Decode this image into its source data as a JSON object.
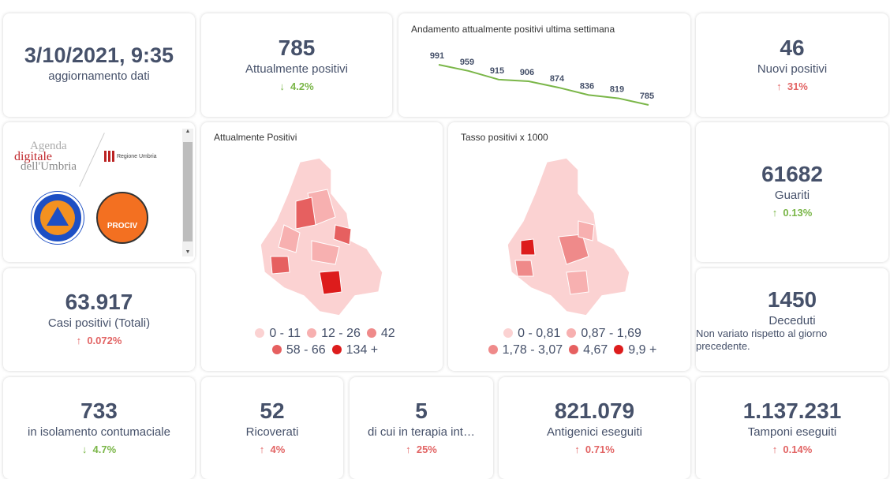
{
  "update": {
    "datetime": "3/10/2021, 9:35",
    "label": "aggiornamento dati"
  },
  "attualmente": {
    "value": "785",
    "label": "Attualmente positivi",
    "delta": "4.2%",
    "dir": "down"
  },
  "trend": {
    "title": "Andamento attualmente positivi ultima settimana"
  },
  "nuovi": {
    "value": "46",
    "label": "Nuovi positivi",
    "delta": "31%",
    "dir": "up"
  },
  "logos": [
    "Agenda digitale dell'Umbria",
    "Regione Umbria",
    "Protezione Civile Regione Umbria",
    "ANCI Umbria PROCIV"
  ],
  "map1": {
    "title": "Attualmente Positivi",
    "legend": [
      {
        "label": "0 - 11",
        "color": "#fbd2d2"
      },
      {
        "label": "12 - 26",
        "color": "#f7b0b0"
      },
      {
        "label": "42",
        "color": "#ef8a8a"
      },
      {
        "label": "58 - 66",
        "color": "#e66060"
      },
      {
        "label": "134 +",
        "color": "#dd1c1c"
      }
    ]
  },
  "map2": {
    "title": "Tasso positivi x 1000",
    "legend": [
      {
        "label": "0 - 0,81",
        "color": "#fbd2d2"
      },
      {
        "label": "0,87 - 1,69",
        "color": "#f7b0b0"
      },
      {
        "label": "1,78 - 3,07",
        "color": "#ef8a8a"
      },
      {
        "label": "4,67",
        "color": "#e66060"
      },
      {
        "label": "9,9 +",
        "color": "#dd1c1c"
      }
    ]
  },
  "guariti": {
    "value": "61682",
    "label": "Guariti",
    "delta": "0.13%",
    "dir": "down"
  },
  "casi": {
    "value": "63.917",
    "label": "Casi positivi (Totali)",
    "delta": "0.072%",
    "dir": "up"
  },
  "deceduti": {
    "value": "1450",
    "label": "Deceduti",
    "note": "Non variato rispetto al giorno precedente."
  },
  "isolamento": {
    "value": "733",
    "label": "in isolamento contumaciale",
    "delta": "4.7%",
    "dir": "down"
  },
  "ricoverati": {
    "value": "52",
    "label": "Ricoverati",
    "delta": "4%",
    "dir": "up"
  },
  "terapia": {
    "value": "5",
    "label": "di cui in terapia int…",
    "delta": "25%",
    "dir": "up"
  },
  "antigenici": {
    "value": "821.079",
    "label": "Antigenici eseguiti",
    "delta": "0.71%",
    "dir": "up"
  },
  "tamponi": {
    "value": "1.137.231",
    "label": "Tamponi eseguiti",
    "delta": "0.14%",
    "dir": "up"
  },
  "arrows": {
    "up": "↑",
    "down": "↓"
  },
  "chart_data": {
    "type": "line",
    "title": "Andamento attualmente positivi ultima settimana",
    "values": [
      991,
      959,
      915,
      906,
      874,
      836,
      819,
      785
    ],
    "color": "#7ab648"
  }
}
